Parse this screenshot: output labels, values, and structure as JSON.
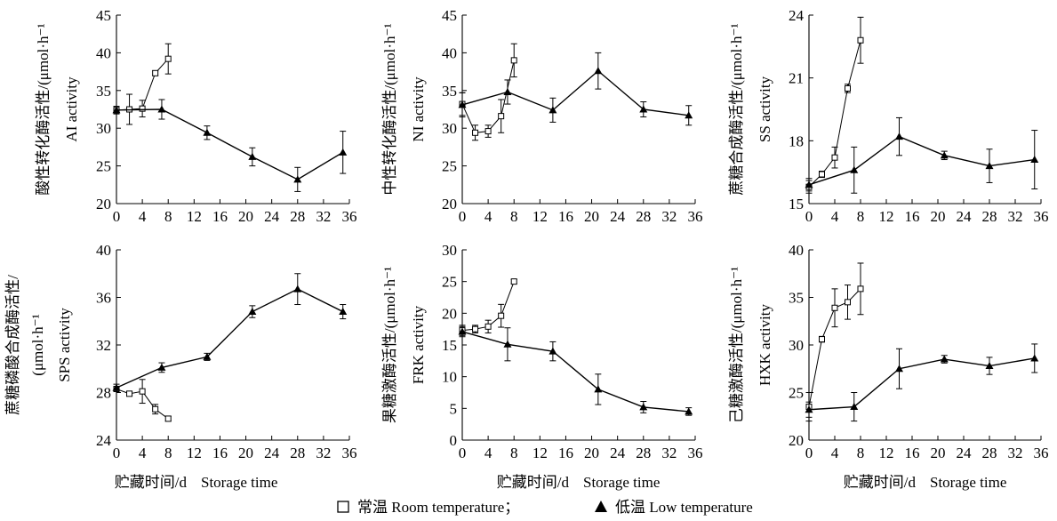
{
  "x_axis_label_cn": "贮藏时间/d",
  "x_axis_label_en": "Storage time",
  "legend": {
    "room_marker": "□",
    "room_label": "常温 Room temperature；",
    "low_marker": "▲",
    "low_label": "低温 Low temperature"
  },
  "chart_data": [
    {
      "type": "line",
      "ylabel_cn": "酸性转化酶活性/(μmol·h⁻¹",
      "ylabel_en": "AI activity",
      "xlim": [
        0,
        36
      ],
      "ylim": [
        20,
        45
      ],
      "xticks": [
        0,
        4,
        8,
        12,
        16,
        20,
        24,
        28,
        32,
        36
      ],
      "yticks": [
        20,
        25,
        30,
        35,
        40,
        45
      ],
      "series": [
        {
          "name": "常温 Room temperature",
          "x": [
            0,
            2,
            4,
            6,
            8
          ],
          "y": [
            32.4,
            32.5,
            32.6,
            37.3,
            39.2
          ],
          "err": [
            0.5,
            2.0,
            1.1,
            0.3,
            2.0
          ]
        },
        {
          "name": "低温 Low temperature",
          "x": [
            0,
            7,
            14,
            21,
            28,
            35
          ],
          "y": [
            32.4,
            32.5,
            29.4,
            26.2,
            23.2,
            26.8
          ],
          "err": [
            0.5,
            1.3,
            0.9,
            1.2,
            1.6,
            2.8
          ]
        }
      ]
    },
    {
      "type": "line",
      "ylabel_cn": "中性转化酶活性/(μmol·h⁻¹",
      "ylabel_en": "NI activity",
      "xlim": [
        0,
        36
      ],
      "ylim": [
        20,
        45
      ],
      "xticks": [
        0,
        4,
        8,
        12,
        16,
        20,
        24,
        28,
        32,
        36
      ],
      "yticks": [
        20,
        25,
        30,
        35,
        40,
        45
      ],
      "series": [
        {
          "name": "常温 Room temperature",
          "x": [
            0,
            2,
            4,
            6,
            8
          ],
          "y": [
            33.2,
            29.4,
            29.6,
            31.6,
            39.0
          ],
          "err": [
            1.5,
            1.0,
            0.8,
            2.2,
            2.2
          ]
        },
        {
          "name": "低温 Low temperature",
          "x": [
            0,
            7,
            14,
            21,
            28,
            35
          ],
          "y": [
            33.1,
            34.8,
            32.4,
            37.6,
            32.5,
            31.7
          ],
          "err": [
            1.6,
            1.6,
            1.6,
            2.4,
            1.0,
            1.3
          ]
        }
      ]
    },
    {
      "type": "line",
      "ylabel_cn": "蔗糖合成酶活性/(μmol·h⁻¹",
      "ylabel_en": "SS activity",
      "xlim": [
        0,
        36
      ],
      "ylim": [
        15,
        24
      ],
      "xticks": [
        0,
        4,
        8,
        12,
        16,
        20,
        24,
        28,
        32,
        36
      ],
      "yticks": [
        15,
        18,
        21,
        24
      ],
      "series": [
        {
          "name": "常温 Room temperature",
          "x": [
            0,
            2,
            4,
            6,
            8
          ],
          "y": [
            15.8,
            16.4,
            17.2,
            20.5,
            22.8
          ],
          "err": [
            0.3,
            0.15,
            0.5,
            0.2,
            1.1
          ]
        },
        {
          "name": "低温 Low temperature",
          "x": [
            0,
            7,
            14,
            21,
            28,
            35
          ],
          "y": [
            15.9,
            16.6,
            18.2,
            17.3,
            16.8,
            17.1
          ],
          "err": [
            0.3,
            1.1,
            0.9,
            0.2,
            0.8,
            1.4
          ]
        }
      ]
    },
    {
      "type": "line",
      "ylabel_cn": "蔗糖磷酸合成酶活性/",
      "ylabel_cn2": "(μmol·h⁻¹",
      "ylabel_en": "SPS activity",
      "xlim": [
        0,
        36
      ],
      "ylim": [
        24,
        40
      ],
      "xticks": [
        0,
        4,
        8,
        12,
        16,
        20,
        24,
        28,
        32,
        36
      ],
      "yticks": [
        24,
        28,
        32,
        36,
        40
      ],
      "series": [
        {
          "name": "常温 Room temperature",
          "x": [
            0,
            2,
            4,
            6,
            8
          ],
          "y": [
            28.3,
            27.9,
            28.1,
            26.6,
            25.8
          ],
          "err": [
            0.2,
            0.2,
            1.0,
            0.4,
            0.2
          ]
        },
        {
          "name": "低温 Low temperature",
          "x": [
            0,
            7,
            14,
            21,
            28,
            35
          ],
          "y": [
            28.4,
            30.1,
            31.0,
            34.8,
            36.7,
            34.8
          ],
          "err": [
            0.3,
            0.4,
            0.3,
            0.5,
            1.3,
            0.6
          ]
        }
      ]
    },
    {
      "type": "line",
      "ylabel_cn": "果糖激酶活性/(μmol·h⁻¹",
      "ylabel_en": "FRK activity",
      "xlim": [
        0,
        36
      ],
      "ylim": [
        0,
        30
      ],
      "xticks": [
        0,
        4,
        8,
        12,
        16,
        20,
        24,
        28,
        32,
        36
      ],
      "yticks": [
        0,
        5,
        10,
        15,
        20,
        25,
        30
      ],
      "series": [
        {
          "name": "常温 Room temperature",
          "x": [
            0,
            2,
            4,
            6,
            8
          ],
          "y": [
            17.3,
            17.5,
            17.9,
            19.6,
            25.0
          ],
          "err": [
            0.8,
            0.6,
            1.0,
            1.8,
            0.3
          ]
        },
        {
          "name": "低温 Low temperature",
          "x": [
            0,
            7,
            14,
            21,
            28,
            35
          ],
          "y": [
            17.1,
            15.1,
            14.0,
            8.0,
            5.2,
            4.5
          ],
          "err": [
            0.8,
            2.6,
            1.5,
            2.4,
            0.9,
            0.6
          ]
        }
      ]
    },
    {
      "type": "line",
      "ylabel_cn": "己糖激酶活性/(μmol·h⁻¹",
      "ylabel_en": "HXK activity",
      "xlim": [
        0,
        36
      ],
      "ylim": [
        20,
        40
      ],
      "xticks": [
        0,
        4,
        8,
        12,
        16,
        20,
        24,
        28,
        32,
        36
      ],
      "yticks": [
        20,
        25,
        30,
        35,
        40
      ],
      "series": [
        {
          "name": "常温 Room temperature",
          "x": [
            0,
            2,
            4,
            6,
            8
          ],
          "y": [
            23.5,
            30.6,
            33.9,
            34.5,
            35.9
          ],
          "err": [
            1.5,
            0.3,
            2.0,
            1.8,
            2.7
          ]
        },
        {
          "name": "低温 Low temperature",
          "x": [
            0,
            7,
            14,
            21,
            28,
            35
          ],
          "y": [
            23.2,
            23.5,
            27.5,
            28.5,
            27.8,
            28.6
          ],
          "err": [
            0.8,
            1.5,
            2.1,
            0.4,
            0.9,
            1.5
          ]
        }
      ]
    }
  ]
}
